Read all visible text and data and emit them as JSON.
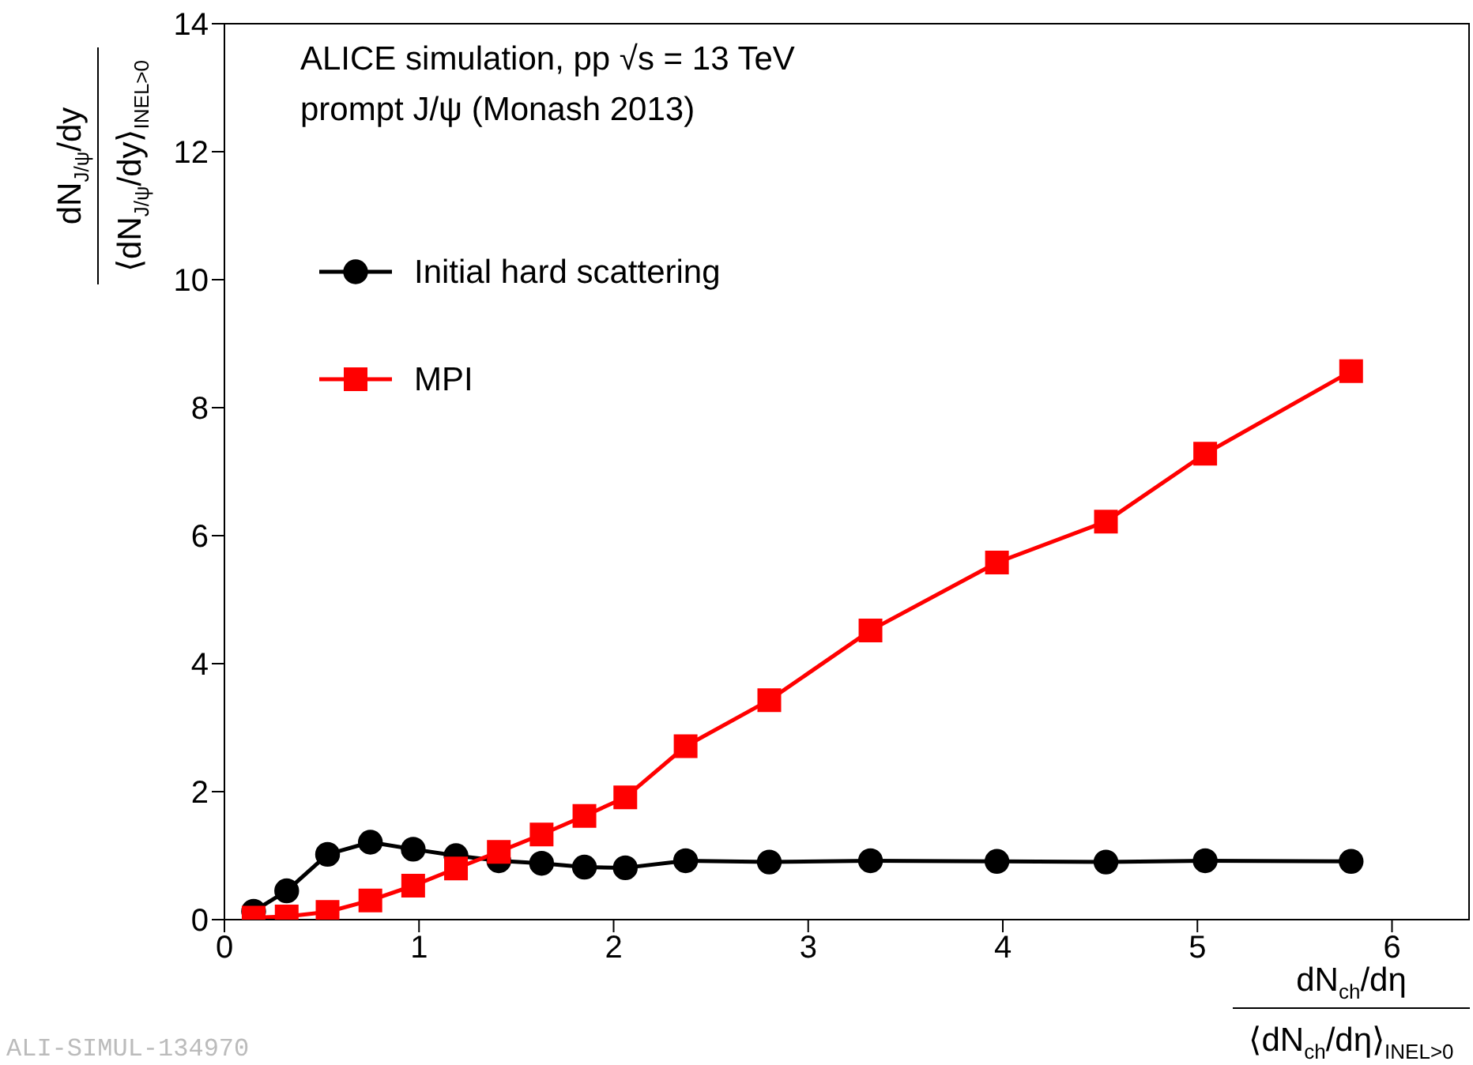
{
  "chart_data": {
    "type": "line",
    "title": "ALICE simulation, pp  √s = 13 TeV",
    "subtitle": "prompt J/ψ (Monash 2013)",
    "xlabel": "dN$_{ch}$/dη\n⟨dN$_{ch}$/dη⟩$_{INEL>0}$",
    "ylabel": "dN$_{J/ψ}$/dy\n⟨dN$_{J/ψ}$/dy⟩$_{INEL>0}$",
    "annotations": [
      "ALI-SIMUL-134970"
    ],
    "series": [
      {
        "name": "Initial hard scattering",
        "color": "#000000",
        "marker": "circle",
        "x": [
          0.15,
          0.32,
          0.53,
          0.75,
          0.97,
          1.19,
          1.41,
          1.63,
          1.85,
          2.06,
          2.37,
          2.8,
          3.32,
          3.97,
          4.53,
          5.04,
          5.79
        ],
        "values": [
          0.13,
          0.45,
          1.02,
          1.21,
          1.1,
          1.0,
          0.92,
          0.88,
          0.82,
          0.81,
          0.92,
          0.9,
          0.92,
          0.91,
          0.9,
          0.92,
          0.91
        ]
      },
      {
        "name": "MPI",
        "color": "#ff0000",
        "marker": "square",
        "x": [
          0.15,
          0.32,
          0.53,
          0.75,
          0.97,
          1.19,
          1.41,
          1.63,
          1.85,
          2.06,
          2.37,
          2.8,
          3.32,
          3.97,
          4.53,
          5.04,
          5.79
        ],
        "values": [
          0.03,
          0.05,
          0.12,
          0.3,
          0.53,
          0.8,
          1.06,
          1.33,
          1.62,
          1.91,
          2.71,
          3.43,
          4.52,
          5.58,
          6.22,
          7.28,
          8.57
        ]
      }
    ],
    "xlim": [
      0,
      6.4
    ],
    "xticks": [
      0,
      1,
      2,
      3,
      4,
      5,
      6
    ],
    "ylim": [
      0,
      14
    ],
    "yticks": [
      0,
      2,
      4,
      6,
      8,
      10,
      12,
      14
    ],
    "grid": false,
    "legend": "top left",
    "line_style": "solid"
  }
}
